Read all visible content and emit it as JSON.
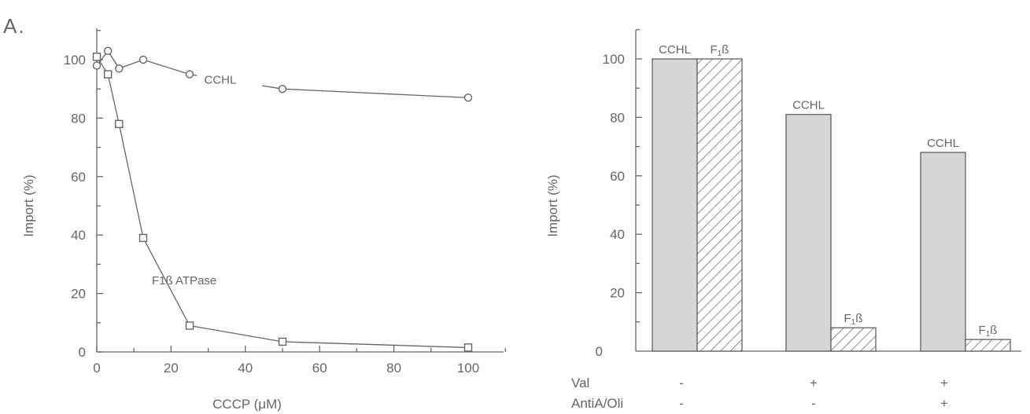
{
  "panel_label": "A.",
  "chart_data": [
    {
      "type": "line",
      "title": "",
      "xlabel": "CCCP (μM)",
      "ylabel": "Import (%)",
      "xlim": [
        0,
        100
      ],
      "ylim": [
        0,
        100
      ],
      "x_ticks": [
        0,
        20,
        40,
        60,
        80,
        100
      ],
      "y_ticks": [
        0,
        20,
        40,
        60,
        80,
        100
      ],
      "series": [
        {
          "name": "CCHL",
          "marker": "circle",
          "points": [
            [
              0,
              98
            ],
            [
              3,
              103
            ],
            [
              6,
              97
            ],
            [
              12.5,
              100
            ],
            [
              25,
              95
            ],
            [
              50,
              90
            ],
            [
              100,
              87
            ]
          ]
        },
        {
          "name": "F1ß ATPase",
          "marker": "square",
          "points": [
            [
              0,
              101
            ],
            [
              3,
              95
            ],
            [
              6,
              78
            ],
            [
              12.5,
              39
            ],
            [
              25,
              9
            ],
            [
              50,
              3.5
            ],
            [
              100,
              1.5
            ]
          ]
        }
      ]
    },
    {
      "type": "bar",
      "title": "",
      "ylabel": "Import (%)",
      "ylim": [
        0,
        100
      ],
      "y_ticks": [
        20,
        40,
        60,
        80,
        100
      ],
      "categories": [
        "-/-",
        "+/-",
        "+/+"
      ],
      "conditions": {
        "rows": [
          {
            "label": "Val",
            "values": [
              "-",
              "+",
              "+"
            ]
          },
          {
            "label": "AntiA/Oli",
            "values": [
              "-",
              "-",
              "+"
            ]
          }
        ]
      },
      "series": [
        {
          "name": "CCHL",
          "style": "solid-gray",
          "values": [
            100,
            81,
            68
          ],
          "bar_labels": [
            "CCHL",
            "CCHL",
            "CCHL"
          ]
        },
        {
          "name": "F1ß",
          "style": "hatched",
          "values": [
            100,
            8,
            4
          ],
          "bar_labels": [
            "F1ß",
            "F1ß",
            "F1ß"
          ]
        }
      ]
    }
  ]
}
